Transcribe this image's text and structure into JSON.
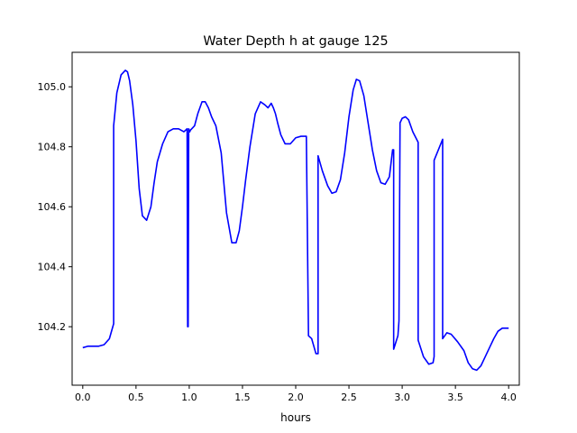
{
  "chart_data": {
    "type": "line",
    "title": "Water Depth h at gauge 125",
    "xlabel": "hours",
    "ylabel": "",
    "xlim": [
      -0.1,
      4.1
    ],
    "ylim": [
      104.005,
      105.115
    ],
    "xticks": [
      0.0,
      0.5,
      1.0,
      1.5,
      2.0,
      2.5,
      3.0,
      3.5,
      4.0
    ],
    "xtick_labels": [
      "0.0",
      "0.5",
      "1.0",
      "1.5",
      "2.0",
      "2.5",
      "3.0",
      "3.5",
      "4.0"
    ],
    "yticks": [
      104.2,
      104.4,
      104.6,
      104.8,
      105.0
    ],
    "ytick_labels": [
      "104.2",
      "104.4",
      "104.6",
      "104.8",
      "105.0"
    ],
    "grid": false,
    "legend": "none",
    "series": [
      {
        "color": "#0000ff",
        "x": [
          0.0,
          0.05,
          0.1,
          0.15,
          0.2,
          0.25,
          0.29,
          0.29,
          0.32,
          0.36,
          0.4,
          0.42,
          0.44,
          0.47,
          0.5,
          0.53,
          0.56,
          0.6,
          0.64,
          0.67,
          0.7,
          0.75,
          0.8,
          0.85,
          0.9,
          0.95,
          0.98,
          0.985,
          0.99,
          0.995,
          1.0,
          1.005,
          1.01,
          1.05,
          1.08,
          1.12,
          1.15,
          1.18,
          1.21,
          1.25,
          1.3,
          1.35,
          1.4,
          1.44,
          1.47,
          1.5,
          1.53,
          1.57,
          1.62,
          1.67,
          1.71,
          1.74,
          1.77,
          1.79,
          1.81,
          1.83,
          1.86,
          1.9,
          1.95,
          2.0,
          2.05,
          2.1,
          2.12,
          2.12,
          2.15,
          2.19,
          2.21,
          2.21,
          2.25,
          2.3,
          2.34,
          2.38,
          2.42,
          2.46,
          2.5,
          2.54,
          2.57,
          2.6,
          2.64,
          2.68,
          2.72,
          2.76,
          2.8,
          2.84,
          2.88,
          2.91,
          2.92,
          2.92,
          2.96,
          2.97,
          2.98,
          3.0,
          3.03,
          3.06,
          3.1,
          3.15,
          3.15,
          3.2,
          3.25,
          3.29,
          3.3,
          3.3,
          3.34,
          3.38,
          3.38,
          3.42,
          3.46,
          3.52,
          3.58,
          3.62,
          3.66,
          3.7,
          3.74,
          3.78,
          3.82,
          3.86,
          3.9,
          3.94,
          3.97,
          4.0
        ],
        "y": [
          104.13,
          104.135,
          104.135,
          104.135,
          104.14,
          104.16,
          104.21,
          104.87,
          104.98,
          105.04,
          105.055,
          105.05,
          105.02,
          104.94,
          104.82,
          104.66,
          104.57,
          104.555,
          104.6,
          104.68,
          104.75,
          104.81,
          104.85,
          104.86,
          104.86,
          104.85,
          104.86,
          104.2,
          104.2,
          104.86,
          104.855,
          104.85,
          104.855,
          104.87,
          104.91,
          104.95,
          104.95,
          104.93,
          104.9,
          104.87,
          104.78,
          104.58,
          104.48,
          104.48,
          104.52,
          104.6,
          104.69,
          104.8,
          104.91,
          104.95,
          104.94,
          104.93,
          104.945,
          104.93,
          104.91,
          104.88,
          104.84,
          104.81,
          104.81,
          104.83,
          104.835,
          104.835,
          104.17,
          104.17,
          104.16,
          104.11,
          104.11,
          104.77,
          104.72,
          104.67,
          104.645,
          104.65,
          104.69,
          104.78,
          104.9,
          104.99,
          105.025,
          105.02,
          104.97,
          104.88,
          104.79,
          104.72,
          104.68,
          104.675,
          104.7,
          104.79,
          104.79,
          104.125,
          104.17,
          104.22,
          104.88,
          104.895,
          104.9,
          104.89,
          104.85,
          104.815,
          104.155,
          104.1,
          104.075,
          104.08,
          104.1,
          104.755,
          104.79,
          104.825,
          104.16,
          104.18,
          104.175,
          104.15,
          104.12,
          104.08,
          104.06,
          104.055,
          104.07,
          104.1,
          104.13,
          104.16,
          104.185,
          104.195,
          104.195,
          104.195
        ]
      }
    ]
  }
}
